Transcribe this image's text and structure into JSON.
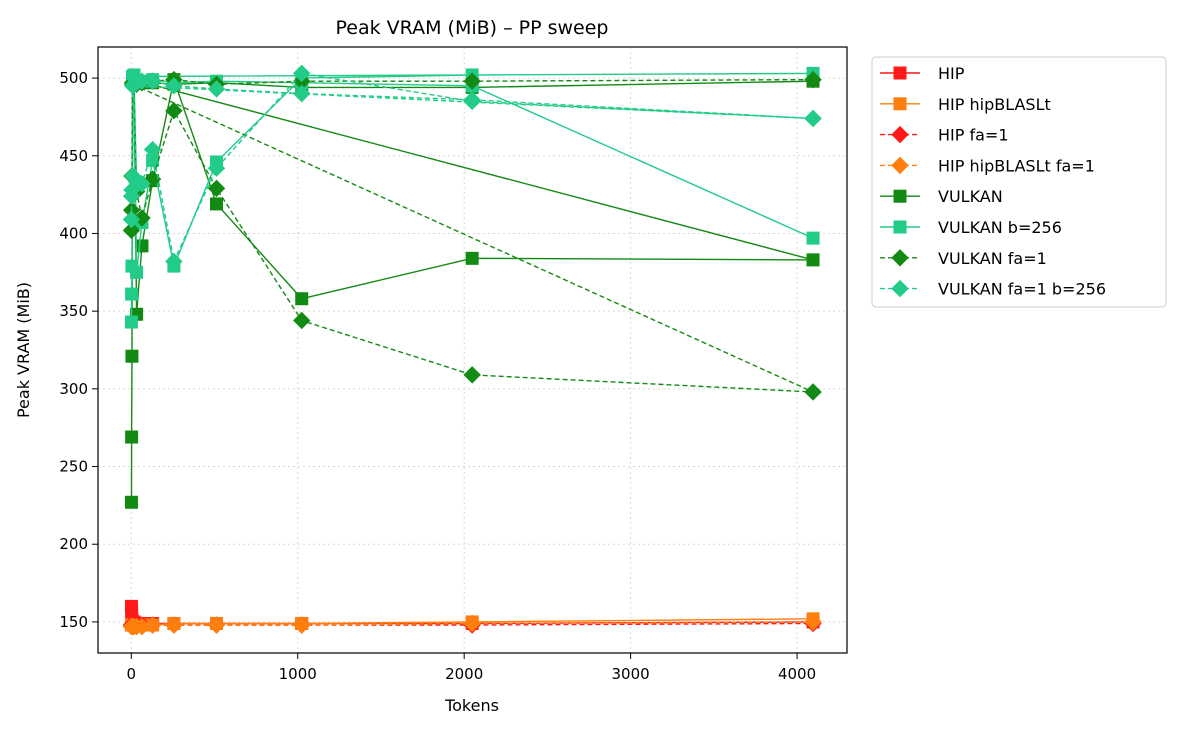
{
  "chart_data": {
    "type": "line",
    "title": "Peak VRAM (MiB) – PP sweep",
    "xlabel": "Tokens",
    "ylabel": "Peak VRAM (MiB)",
    "xlim": [
      -200,
      4300
    ],
    "ylim": [
      130,
      520
    ],
    "xticks": [
      0,
      1000,
      2000,
      3000,
      4000
    ],
    "yticks": [
      150,
      200,
      250,
      300,
      350,
      400,
      450,
      500
    ],
    "grid": true,
    "legend_position": "outside-top-right",
    "series": [
      {
        "name": "HIP",
        "color": "#ff1a1a",
        "marker": "square",
        "linestyle": "solid",
        "points": [
          [
            1,
            160
          ],
          [
            2,
            157
          ],
          [
            4,
            152
          ],
          [
            8,
            150
          ],
          [
            16,
            150
          ],
          [
            32,
            149
          ],
          [
            64,
            149
          ],
          [
            128,
            149
          ],
          [
            256,
            149
          ],
          [
            512,
            149
          ],
          [
            1024,
            149
          ],
          [
            2048,
            149
          ],
          [
            4096,
            150
          ]
        ]
      },
      {
        "name": "HIP hipBLASLt",
        "color": "#ff7f0e",
        "marker": "square",
        "linestyle": "solid",
        "points": [
          [
            1,
            148
          ],
          [
            2,
            148
          ],
          [
            4,
            148
          ],
          [
            8,
            148
          ],
          [
            16,
            148
          ],
          [
            32,
            148
          ],
          [
            64,
            148
          ],
          [
            128,
            148
          ],
          [
            256,
            149
          ],
          [
            512,
            149
          ],
          [
            1024,
            149
          ],
          [
            2048,
            150
          ],
          [
            4096,
            152
          ]
        ]
      },
      {
        "name": "HIP fa=1",
        "color": "#ff1a1a",
        "marker": "diamond",
        "linestyle": "dashed",
        "points": [
          [
            1,
            148
          ],
          [
            2,
            148
          ],
          [
            4,
            148
          ],
          [
            8,
            148
          ],
          [
            16,
            148
          ],
          [
            32,
            148
          ],
          [
            64,
            148
          ],
          [
            128,
            148
          ],
          [
            256,
            148
          ],
          [
            512,
            148
          ],
          [
            1024,
            148
          ],
          [
            2048,
            148
          ],
          [
            4096,
            149
          ]
        ]
      },
      {
        "name": "HIP hipBLASLt fa=1",
        "color": "#ff7f0e",
        "marker": "diamond",
        "linestyle": "dashed",
        "points": [
          [
            1,
            147
          ],
          [
            2,
            147
          ],
          [
            4,
            147
          ],
          [
            8,
            147
          ],
          [
            16,
            147
          ],
          [
            32,
            147
          ],
          [
            64,
            147
          ],
          [
            128,
            148
          ],
          [
            256,
            148
          ],
          [
            512,
            148
          ],
          [
            1024,
            148
          ],
          [
            2048,
            149
          ],
          [
            4096,
            150
          ]
        ]
      },
      {
        "name": "VULKAN",
        "color": "#138a13",
        "marker": "square",
        "linestyle": "solid",
        "points": [
          [
            1,
            227
          ],
          [
            2,
            269
          ],
          [
            4,
            321
          ],
          [
            8,
            498
          ],
          [
            16,
            497
          ],
          [
            32,
            348
          ],
          [
            64,
            392
          ],
          [
            128,
            434
          ],
          [
            256,
            499
          ],
          [
            512,
            419
          ],
          [
            1024,
            358
          ],
          [
            2048,
            384
          ],
          [
            4096,
            383
          ],
          [
            8,
            499
          ],
          [
            16,
            498
          ],
          [
            32,
            497
          ],
          [
            64,
            497
          ],
          [
            128,
            497
          ],
          [
            256,
            496
          ],
          [
            512,
            497
          ],
          [
            1024,
            494
          ],
          [
            2048,
            494
          ],
          [
            4096,
            498
          ]
        ]
      },
      {
        "name": "VULKAN b=256",
        "color": "#22cc88",
        "marker": "square",
        "linestyle": "solid",
        "points": [
          [
            1,
            343
          ],
          [
            2,
            361
          ],
          [
            4,
            379
          ],
          [
            8,
            501
          ],
          [
            16,
            502
          ],
          [
            32,
            375
          ],
          [
            64,
            407
          ],
          [
            128,
            447
          ],
          [
            256,
            379
          ],
          [
            512,
            446
          ],
          [
            1024,
            500
          ],
          [
            2048,
            502
          ],
          [
            4096,
            503
          ],
          [
            8,
            501
          ],
          [
            16,
            500
          ],
          [
            32,
            498
          ],
          [
            64,
            498
          ],
          [
            128,
            499
          ],
          [
            256,
            497
          ],
          [
            512,
            498
          ],
          [
            1024,
            497
          ],
          [
            2048,
            495
          ],
          [
            4096,
            397
          ]
        ]
      },
      {
        "name": "VULKAN fa=1",
        "color": "#138a13",
        "marker": "diamond",
        "linestyle": "dashed",
        "points": [
          [
            1,
            402
          ],
          [
            2,
            415
          ],
          [
            4,
            437
          ],
          [
            8,
            497
          ],
          [
            16,
            497
          ],
          [
            32,
            427
          ],
          [
            64,
            410
          ],
          [
            128,
            435
          ],
          [
            256,
            479
          ],
          [
            512,
            429
          ],
          [
            1024,
            344
          ],
          [
            2048,
            309
          ],
          [
            4096,
            298
          ],
          [
            8,
            496
          ],
          [
            16,
            496
          ],
          [
            32,
            496
          ],
          [
            64,
            497
          ],
          [
            128,
            498
          ],
          [
            256,
            499
          ],
          [
            512,
            496
          ],
          [
            1024,
            498
          ],
          [
            2048,
            498
          ],
          [
            4096,
            499
          ]
        ]
      },
      {
        "name": "VULKAN fa=1 b=256",
        "color": "#22cc88",
        "marker": "diamond",
        "linestyle": "dashed",
        "points": [
          [
            1,
            409
          ],
          [
            2,
            424
          ],
          [
            4,
            428
          ],
          [
            8,
            437
          ],
          [
            16,
            500
          ],
          [
            32,
            433
          ],
          [
            64,
            432
          ],
          [
            128,
            454
          ],
          [
            256,
            382
          ],
          [
            512,
            442
          ],
          [
            1024,
            503
          ],
          [
            2048,
            485
          ],
          [
            4096,
            474
          ],
          [
            8,
            495
          ],
          [
            16,
            496
          ],
          [
            32,
            497
          ],
          [
            64,
            498
          ],
          [
            128,
            498
          ],
          [
            256,
            495
          ],
          [
            512,
            493
          ],
          [
            1024,
            490
          ],
          [
            2048,
            486
          ],
          [
            4096,
            474
          ]
        ]
      }
    ]
  }
}
